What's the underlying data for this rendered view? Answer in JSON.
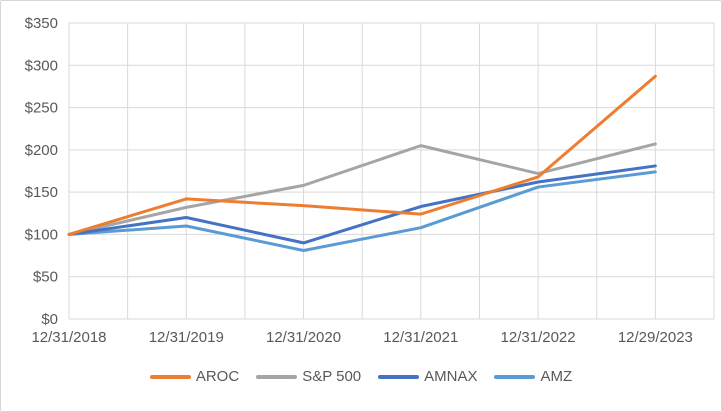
{
  "figure": {
    "background": "#FFFFFF",
    "border_color": "#D6D6D6",
    "text_color": "#595959",
    "gridline_color": "#D9D9D9"
  },
  "chart_data": {
    "type": "line",
    "title": "",
    "xlabel": "",
    "ylabel": "",
    "x": [
      "12/31/2018",
      "12/31/2019",
      "12/31/2020",
      "12/31/2021",
      "12/31/2022",
      "12/29/2023"
    ],
    "series": [
      {
        "name": "AROC",
        "color": "#ED7D31",
        "values": [
          100,
          142,
          134,
          124,
          168,
          287
        ]
      },
      {
        "name": "S&P 500",
        "color": "#A5A5A5",
        "values": [
          100,
          132,
          158,
          205,
          172,
          207
        ]
      },
      {
        "name": "AMNAX",
        "color": "#4472C4",
        "values": [
          100,
          120,
          90,
          133,
          162,
          181
        ]
      },
      {
        "name": "AMZ",
        "color": "#5B9BD5",
        "values": [
          100,
          110,
          81,
          108,
          156,
          174
        ]
      }
    ],
    "ylim": [
      0,
      350
    ],
    "ytick_step": 50,
    "ytick_labels": [
      "$0",
      "$50",
      "$100",
      "$150",
      "$200",
      "$250",
      "$300",
      "$350"
    ],
    "grid": true,
    "minor_x_gridlines": true,
    "legend_position": "bottom"
  }
}
